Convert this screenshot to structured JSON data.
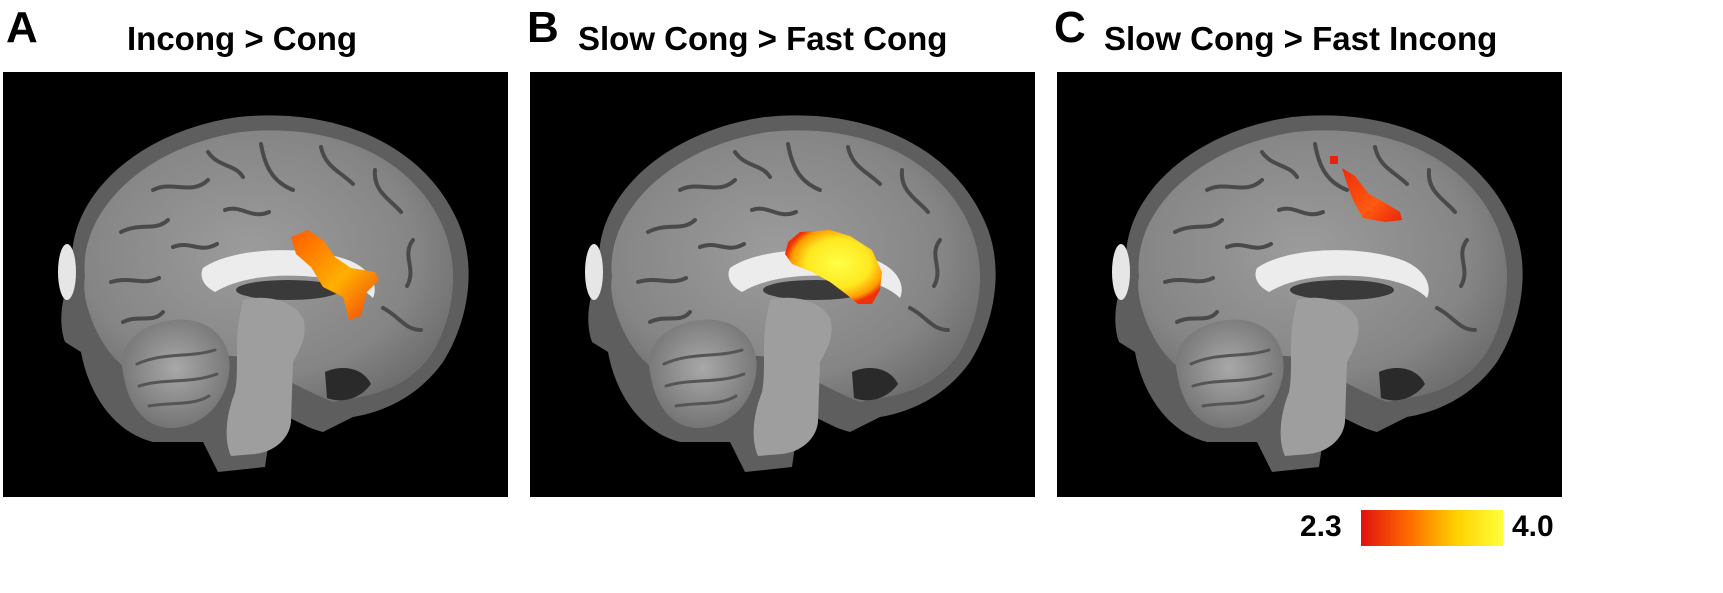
{
  "panels": [
    {
      "letter": "A",
      "title": "Incong > Cong",
      "activation": "medium"
    },
    {
      "letter": "B",
      "title": "Slow Cong > Fast Cong",
      "activation": "strong"
    },
    {
      "letter": "C",
      "title": "Slow Cong > Fast Incong",
      "activation": "weak"
    }
  ],
  "colorbar": {
    "min_label": "2.3",
    "max_label": "4.0",
    "min": 2.3,
    "max": 4.0,
    "colors": [
      "#e01010",
      "#ff6a00",
      "#ffd000",
      "#ffff3a"
    ]
  }
}
